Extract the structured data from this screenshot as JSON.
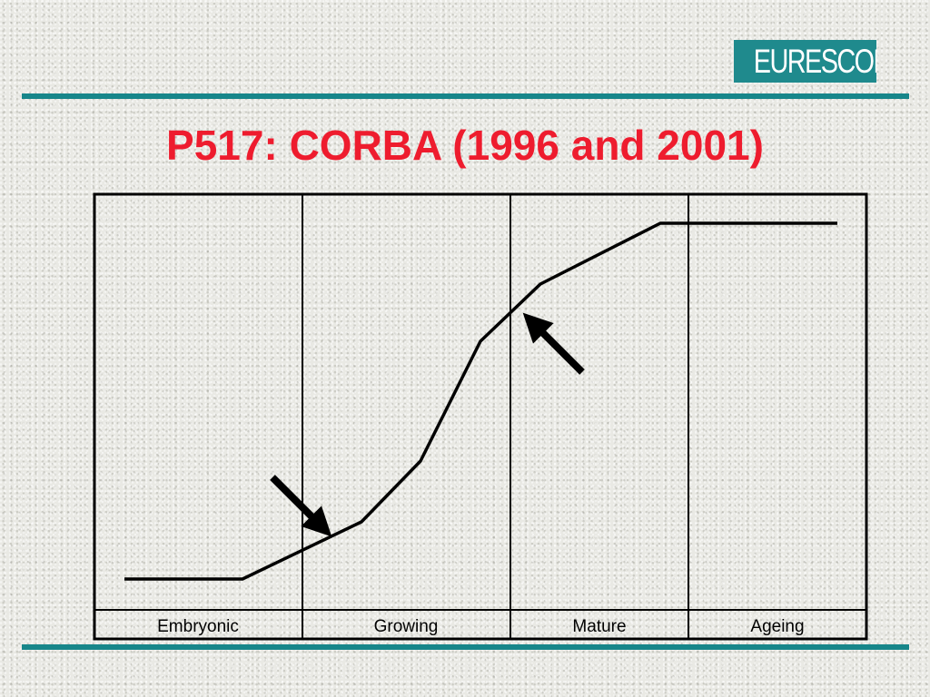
{
  "logo": {
    "text": "EURESCOM"
  },
  "title": "P517: CORBA (1996 and 2001)",
  "stages": [
    "Embryonic",
    "Growing",
    "Mature",
    "Ageing"
  ],
  "colors": {
    "rule": "#17868a",
    "title": "#ee1c2e",
    "logo_bg": "#1f8a8d"
  },
  "annotations": [
    {
      "name": "1996-arrow",
      "direction": "down-right"
    },
    {
      "name": "2001-arrow",
      "direction": "up-left"
    }
  ]
}
